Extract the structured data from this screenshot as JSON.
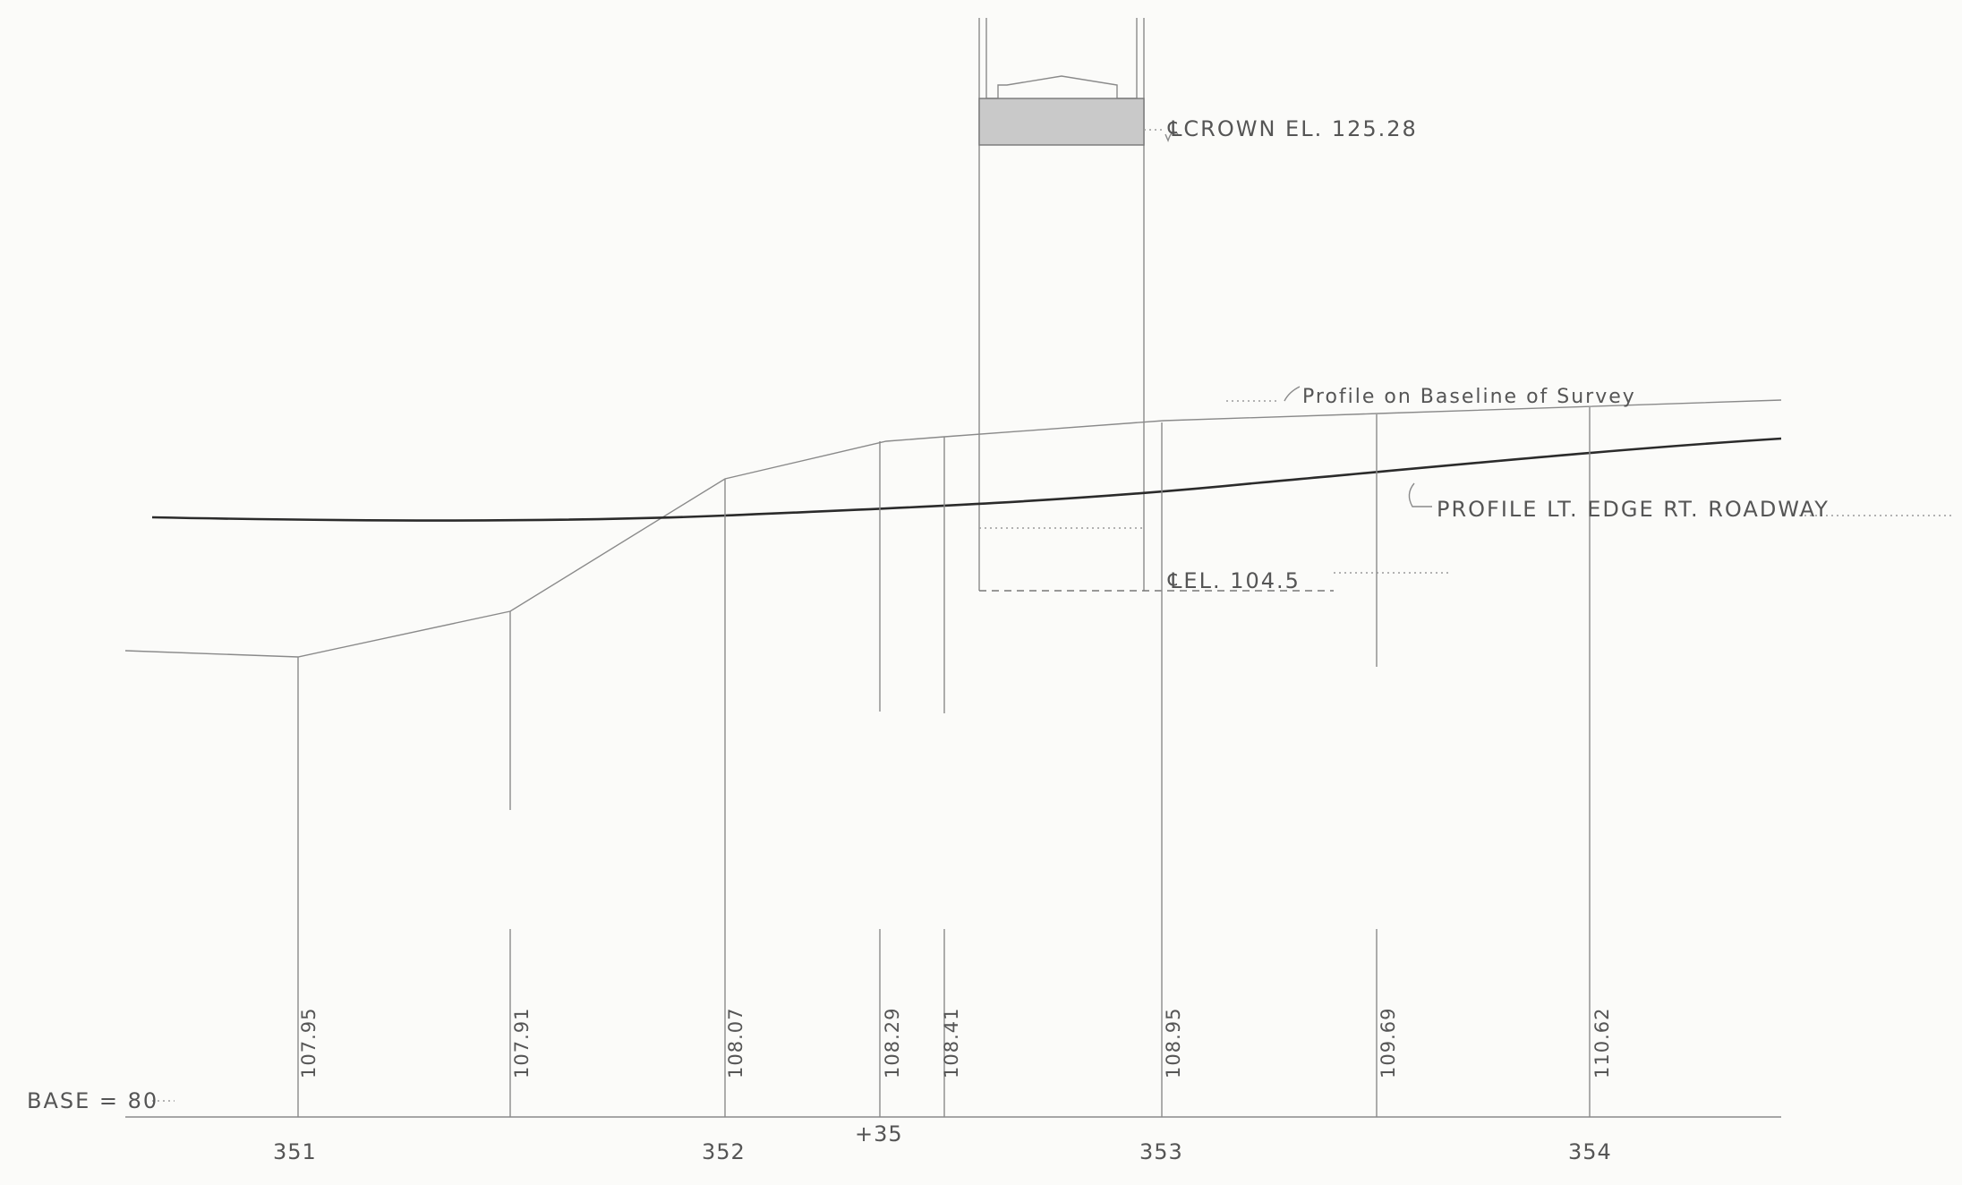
{
  "labels": {
    "crown": "℄CROWN EL. 125.28",
    "invert": "℄EL. 104.5",
    "profile_baseline": "Profile on Baseline of Survey",
    "profile_edge": "PROFILE LT. EDGE RT. ROADWAY",
    "base": "BASE = 80"
  },
  "stations": [
    "351",
    "352",
    "+35",
    "353",
    "354"
  ],
  "elevations": [
    "107.95",
    "107.91",
    "108.07",
    "108.29",
    "108.41",
    "108.95",
    "109.69",
    "110.62"
  ]
}
